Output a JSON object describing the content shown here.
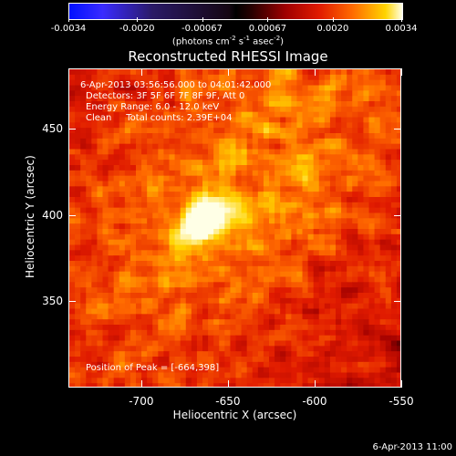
{
  "colorbar": {
    "ticks": [
      "-0.0034",
      "-0.0020",
      "-0.00067",
      "0.00067",
      "0.0020",
      "0.0034"
    ],
    "units_prefix": "(photons cm",
    "units_sup1": "-2",
    "units_mid1": " s",
    "units_sup2": "-1",
    "units_mid2": " asec",
    "units_sup3": "-2",
    "units_suffix": ")"
  },
  "title": "Reconstructed RHESSI Image",
  "info": {
    "time_range": "6-Apr-2013 03:56:56.000 to 04:01:42.000",
    "detectors": "Detectors: 3F 5F 6F 7F 8F 9F, Att 0",
    "energy": "Energy Range: 6.0 - 12.0 keV",
    "clean": "Clean     Total counts: 2.39E+04",
    "peak": "Position of Peak = [-664,398]"
  },
  "footer": "6-Apr-2013 11:00",
  "chart_data": {
    "type": "heatmap",
    "title": "Reconstructed RHESSI Image",
    "xlabel": "Heliocentric X (arcsec)",
    "ylabel": "Heliocentric Y (arcsec)",
    "xlim": [
      -742,
      -550
    ],
    "ylim": [
      300,
      485
    ],
    "x_ticks": [
      -700,
      -650,
      -600,
      -550
    ],
    "y_ticks": [
      350,
      400,
      450
    ],
    "x_tick_labels": [
      "-700",
      "-650",
      "-600",
      "-550"
    ],
    "y_tick_labels": [
      "350",
      "400",
      "450"
    ],
    "color_range": [
      -0.0034,
      0.0034
    ],
    "peak": [
      -664,
      398
    ],
    "colormap": [
      "#0010ff",
      "#2a1a66",
      "#000000",
      "#a00000",
      "#e01a00",
      "#ff6a00",
      "#ffd400",
      "#ffffe6"
    ]
  }
}
